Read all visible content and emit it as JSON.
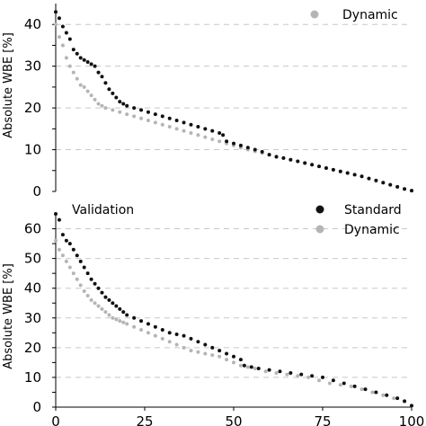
{
  "chart_data": [
    {
      "type": "scatter",
      "title": "",
      "xlabel": "",
      "ylabel": "Absolute WBE [%]",
      "xlim": [
        0,
        100
      ],
      "ylim": [
        0,
        45
      ],
      "yticks": [
        "0",
        "10",
        "20",
        "30",
        "40"
      ],
      "grid": true,
      "legend": "top-right",
      "series": [
        {
          "name": "Standard",
          "color": "#111111",
          "legend_visible": false,
          "points": [
            [
              0,
              43
            ],
            [
              1,
              41.5
            ],
            [
              2,
              39.5
            ],
            [
              3,
              38
            ],
            [
              4,
              36.5
            ],
            [
              5,
              34
            ],
            [
              6,
              33
            ],
            [
              7,
              32
            ],
            [
              8,
              31.5
            ],
            [
              9,
              31
            ],
            [
              10,
              30.5
            ],
            [
              11,
              30
            ],
            [
              12,
              28.5
            ],
            [
              13,
              27.5
            ],
            [
              14,
              26
            ],
            [
              15,
              24.5
            ],
            [
              16,
              23.5
            ],
            [
              17,
              22.5
            ],
            [
              18,
              21.5
            ],
            [
              19,
              21
            ],
            [
              20,
              20.5
            ],
            [
              22,
              20
            ],
            [
              24,
              19.5
            ],
            [
              26,
              19
            ],
            [
              28,
              18.5
            ],
            [
              30,
              18
            ],
            [
              32,
              17.5
            ],
            [
              34,
              17
            ],
            [
              36,
              16.5
            ],
            [
              38,
              16
            ],
            [
              40,
              15.5
            ],
            [
              42,
              15
            ],
            [
              44,
              14.5
            ],
            [
              46,
              14
            ],
            [
              47,
              13.5
            ],
            [
              48,
              12
            ],
            [
              50,
              11.5
            ],
            [
              52,
              11
            ],
            [
              54,
              10.5
            ],
            [
              56,
              10
            ],
            [
              58,
              9.5
            ],
            [
              60,
              8.8
            ],
            [
              62,
              8.3
            ],
            [
              64,
              8
            ],
            [
              66,
              7.6
            ],
            [
              68,
              7.2
            ],
            [
              70,
              6.8
            ],
            [
              72,
              6.4
            ],
            [
              74,
              6
            ],
            [
              76,
              5.6
            ],
            [
              78,
              5.2
            ],
            [
              80,
              4.8
            ],
            [
              82,
              4.4
            ],
            [
              84,
              4
            ],
            [
              86,
              3.6
            ],
            [
              88,
              3.1
            ],
            [
              90,
              2.6
            ],
            [
              92,
              2.1
            ],
            [
              94,
              1.6
            ],
            [
              96,
              1.1
            ],
            [
              98,
              0.6
            ],
            [
              100,
              0.2
            ]
          ]
        },
        {
          "name": "Dynamic",
          "color": "#b5b5b5",
          "points": [
            [
              0,
              40
            ],
            [
              1,
              37
            ],
            [
              2,
              35
            ],
            [
              3,
              32
            ],
            [
              4,
              30
            ],
            [
              5,
              28.5
            ],
            [
              6,
              27
            ],
            [
              7,
              25.5
            ],
            [
              8,
              25
            ],
            [
              9,
              24
            ],
            [
              10,
              23
            ],
            [
              11,
              22
            ],
            [
              12,
              21
            ],
            [
              13,
              20.5
            ],
            [
              14,
              20
            ],
            [
              16,
              19.5
            ],
            [
              18,
              19
            ],
            [
              20,
              18.5
            ],
            [
              22,
              18
            ],
            [
              24,
              17.5
            ],
            [
              26,
              17
            ],
            [
              28,
              16.5
            ],
            [
              30,
              16
            ],
            [
              32,
              15.5
            ],
            [
              34,
              15
            ],
            [
              36,
              14.5
            ],
            [
              38,
              14
            ],
            [
              40,
              13.5
            ],
            [
              42,
              13
            ],
            [
              44,
              12.5
            ],
            [
              46,
              12
            ],
            [
              48,
              11.5
            ],
            [
              50,
              11
            ],
            [
              52,
              10.5
            ],
            [
              54,
              10
            ],
            [
              56,
              9.6
            ],
            [
              58,
              9.2
            ],
            [
              60,
              8.8
            ],
            [
              62,
              8.4
            ],
            [
              64,
              8
            ],
            [
              66,
              7.6
            ],
            [
              68,
              7.2
            ],
            [
              70,
              6.8
            ],
            [
              72,
              6.4
            ],
            [
              74,
              6
            ],
            [
              76,
              5.6
            ],
            [
              78,
              5.2
            ],
            [
              80,
              4.8
            ],
            [
              82,
              4.4
            ],
            [
              84,
              4
            ],
            [
              86,
              3.6
            ],
            [
              88,
              3.1
            ],
            [
              90,
              2.6
            ],
            [
              92,
              2.1
            ],
            [
              94,
              1.6
            ],
            [
              96,
              1.1
            ],
            [
              98,
              0.6
            ],
            [
              100,
              0.2
            ]
          ]
        }
      ]
    },
    {
      "type": "scatter",
      "title": "Validation",
      "xlabel": "",
      "ylabel": "Absolute WBE [%]",
      "xlim": [
        0,
        100
      ],
      "ylim": [
        0,
        65
      ],
      "xticks": [
        "0",
        "25",
        "50",
        "75",
        "100"
      ],
      "yticks": [
        "0",
        "10",
        "20",
        "30",
        "40",
        "50",
        "60"
      ],
      "grid": true,
      "legend": "top-right",
      "series": [
        {
          "name": "Standard",
          "color": "#111111",
          "points": [
            [
              0,
              65
            ],
            [
              1,
              63
            ],
            [
              2,
              58
            ],
            [
              3,
              56
            ],
            [
              4,
              55
            ],
            [
              5,
              53
            ],
            [
              6,
              51
            ],
            [
              7,
              49
            ],
            [
              8,
              47
            ],
            [
              9,
              45
            ],
            [
              10,
              43
            ],
            [
              11,
              41.5
            ],
            [
              12,
              40
            ],
            [
              13,
              38.5
            ],
            [
              14,
              37
            ],
            [
              15,
              36
            ],
            [
              16,
              35
            ],
            [
              17,
              34
            ],
            [
              18,
              33
            ],
            [
              19,
              32
            ],
            [
              20,
              31
            ],
            [
              22,
              30
            ],
            [
              24,
              29
            ],
            [
              26,
              28
            ],
            [
              28,
              27
            ],
            [
              30,
              26
            ],
            [
              32,
              25
            ],
            [
              34,
              24.5
            ],
            [
              36,
              24
            ],
            [
              38,
              23
            ],
            [
              40,
              22
            ],
            [
              42,
              21
            ],
            [
              44,
              20
            ],
            [
              46,
              19
            ],
            [
              48,
              18
            ],
            [
              50,
              17
            ],
            [
              52,
              16
            ],
            [
              53,
              14
            ],
            [
              55,
              13.5
            ],
            [
              57,
              13
            ],
            [
              60,
              12.5
            ],
            [
              63,
              12
            ],
            [
              66,
              11.5
            ],
            [
              69,
              11
            ],
            [
              72,
              10.5
            ],
            [
              75,
              10
            ],
            [
              78,
              9
            ],
            [
              81,
              8
            ],
            [
              84,
              7
            ],
            [
              87,
              6
            ],
            [
              90,
              5
            ],
            [
              93,
              4
            ],
            [
              96,
              3
            ],
            [
              98,
              2
            ],
            [
              100,
              0.5
            ]
          ]
        },
        {
          "name": "Dynamic",
          "color": "#b5b5b5",
          "points": [
            [
              0,
              56
            ],
            [
              1,
              53
            ],
            [
              2,
              51
            ],
            [
              3,
              49
            ],
            [
              4,
              47
            ],
            [
              5,
              45
            ],
            [
              6,
              43
            ],
            [
              7,
              41
            ],
            [
              8,
              39
            ],
            [
              9,
              37.5
            ],
            [
              10,
              36
            ],
            [
              11,
              35
            ],
            [
              12,
              34
            ],
            [
              13,
              33
            ],
            [
              14,
              32
            ],
            [
              15,
              31
            ],
            [
              16,
              30
            ],
            [
              17,
              29.5
            ],
            [
              18,
              29
            ],
            [
              19,
              28.5
            ],
            [
              20,
              28
            ],
            [
              22,
              27
            ],
            [
              24,
              26
            ],
            [
              26,
              25
            ],
            [
              28,
              24
            ],
            [
              30,
              23
            ],
            [
              32,
              22
            ],
            [
              34,
              21
            ],
            [
              36,
              20
            ],
            [
              38,
              19
            ],
            [
              40,
              18.5
            ],
            [
              42,
              18
            ],
            [
              44,
              17.5
            ],
            [
              46,
              17
            ],
            [
              48,
              16
            ],
            [
              50,
              15
            ],
            [
              52,
              14
            ],
            [
              54,
              13.5
            ],
            [
              56,
              13
            ],
            [
              59,
              12
            ],
            [
              62,
              11.5
            ],
            [
              65,
              11
            ],
            [
              68,
              10.5
            ],
            [
              71,
              10
            ],
            [
              74,
              9
            ],
            [
              77,
              8
            ],
            [
              80,
              7.5
            ],
            [
              83,
              7
            ],
            [
              86,
              6
            ],
            [
              89,
              5
            ],
            [
              92,
              4
            ],
            [
              95,
              3
            ],
            [
              98,
              2
            ],
            [
              100,
              0.5
            ]
          ]
        }
      ]
    }
  ]
}
